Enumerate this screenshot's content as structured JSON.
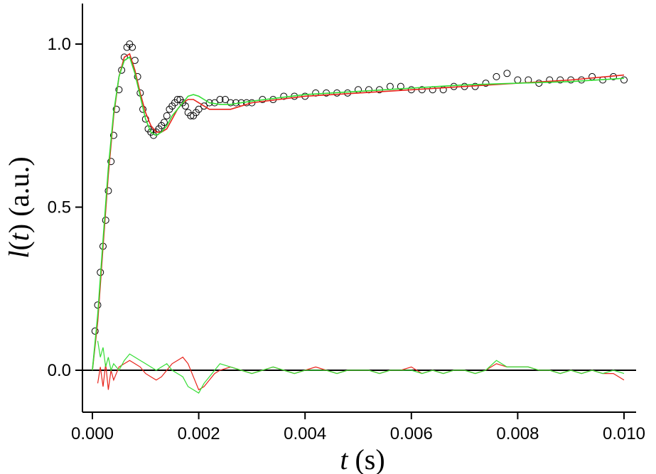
{
  "chart_data": {
    "type": "line",
    "title": "",
    "xlabel_var": "t",
    "xlabel_unit": "(s)",
    "ylabel_var": "l",
    "ylabel_arg": "t",
    "ylabel_unit": "(a.u.)",
    "xlim": [
      0.0,
      0.01
    ],
    "ylim": [
      -0.1,
      1.12
    ],
    "x_ticks": [
      0.0,
      0.002,
      0.004,
      0.006,
      0.008,
      0.01
    ],
    "x_tick_labels": [
      "0.000",
      "0.002",
      "0.004",
      "0.006",
      "0.008",
      "0.010"
    ],
    "y_ticks": [
      0.0,
      0.5,
      1.0
    ],
    "y_tick_labels": [
      "0.0",
      "0.5",
      "1.0"
    ],
    "grid": false,
    "legend": "none",
    "colors": {
      "data": "#000000",
      "fit_red": "#e8231a",
      "fit_green": "#33dd33",
      "zero_line": "#000000"
    },
    "series": [
      {
        "style": "circles",
        "color": "#000000",
        "x": [
          5e-05,
          0.0001,
          0.00015,
          0.0002,
          0.00025,
          0.0003,
          0.00035,
          0.0004,
          0.00045,
          0.0005,
          0.00055,
          0.0006,
          0.00065,
          0.0007,
          0.00075,
          0.0008,
          0.00085,
          0.0009,
          0.00095,
          0.001,
          0.00105,
          0.0011,
          0.00115,
          0.0012,
          0.00125,
          0.0013,
          0.00135,
          0.0014,
          0.00145,
          0.0015,
          0.00155,
          0.0016,
          0.00165,
          0.0017,
          0.00175,
          0.0018,
          0.00185,
          0.0019,
          0.00195,
          0.002,
          0.0021,
          0.0022,
          0.0023,
          0.0024,
          0.0025,
          0.0026,
          0.0027,
          0.0028,
          0.0029,
          0.003,
          0.0032,
          0.0034,
          0.0036,
          0.0038,
          0.004,
          0.0042,
          0.0044,
          0.0046,
          0.0048,
          0.005,
          0.0052,
          0.0054,
          0.0056,
          0.0058,
          0.006,
          0.0062,
          0.0064,
          0.0066,
          0.0068,
          0.007,
          0.0072,
          0.0074,
          0.0076,
          0.0078,
          0.008,
          0.0082,
          0.0084,
          0.0086,
          0.0088,
          0.009,
          0.0092,
          0.0094,
          0.0096,
          0.0098,
          0.01
        ],
        "y": [
          0.12,
          0.2,
          0.3,
          0.38,
          0.46,
          0.55,
          0.64,
          0.72,
          0.8,
          0.86,
          0.92,
          0.96,
          0.99,
          1.0,
          0.99,
          0.95,
          0.9,
          0.85,
          0.8,
          0.77,
          0.74,
          0.73,
          0.72,
          0.73,
          0.74,
          0.75,
          0.76,
          0.78,
          0.8,
          0.81,
          0.82,
          0.83,
          0.83,
          0.82,
          0.81,
          0.79,
          0.78,
          0.78,
          0.79,
          0.8,
          0.81,
          0.82,
          0.82,
          0.83,
          0.83,
          0.82,
          0.82,
          0.82,
          0.82,
          0.82,
          0.83,
          0.83,
          0.84,
          0.84,
          0.84,
          0.85,
          0.85,
          0.85,
          0.85,
          0.86,
          0.86,
          0.86,
          0.87,
          0.87,
          0.86,
          0.86,
          0.86,
          0.86,
          0.87,
          0.87,
          0.87,
          0.88,
          0.9,
          0.91,
          0.89,
          0.89,
          0.88,
          0.89,
          0.89,
          0.89,
          0.89,
          0.9,
          0.89,
          0.9,
          0.89
        ]
      },
      {
        "style": "line",
        "color": "#e8231a",
        "x": [
          0.0,
          0.0001,
          0.0002,
          0.0003,
          0.0004,
          0.0005,
          0.0006,
          0.0007,
          0.0008,
          0.0009,
          0.001,
          0.0011,
          0.0012,
          0.0013,
          0.0014,
          0.0015,
          0.0016,
          0.0017,
          0.0018,
          0.0019,
          0.002,
          0.0022,
          0.0024,
          0.0026,
          0.0028,
          0.003,
          0.0035,
          0.004,
          0.005,
          0.006,
          0.007,
          0.008,
          0.009,
          0.01
        ],
        "y": [
          0.0,
          0.15,
          0.38,
          0.6,
          0.78,
          0.9,
          0.96,
          0.97,
          0.92,
          0.85,
          0.79,
          0.75,
          0.73,
          0.73,
          0.74,
          0.77,
          0.8,
          0.82,
          0.83,
          0.83,
          0.82,
          0.8,
          0.8,
          0.8,
          0.81,
          0.82,
          0.83,
          0.84,
          0.85,
          0.86,
          0.87,
          0.88,
          0.89,
          0.905
        ]
      },
      {
        "style": "line",
        "color": "#33dd33",
        "x": [
          0.0,
          0.0001,
          0.0002,
          0.0003,
          0.0004,
          0.0005,
          0.0006,
          0.0007,
          0.0008,
          0.0009,
          0.001,
          0.0011,
          0.0012,
          0.0013,
          0.0014,
          0.0015,
          0.0016,
          0.0017,
          0.0018,
          0.0019,
          0.002,
          0.0021,
          0.0022,
          0.0024,
          0.0026,
          0.0028,
          0.003,
          0.0035,
          0.004,
          0.005,
          0.006,
          0.007,
          0.008,
          0.009,
          0.01
        ],
        "y": [
          0.0,
          0.17,
          0.4,
          0.62,
          0.79,
          0.9,
          0.95,
          0.96,
          0.91,
          0.84,
          0.77,
          0.73,
          0.72,
          0.73,
          0.75,
          0.78,
          0.8,
          0.82,
          0.84,
          0.845,
          0.84,
          0.83,
          0.82,
          0.815,
          0.815,
          0.82,
          0.825,
          0.835,
          0.845,
          0.855,
          0.865,
          0.875,
          0.88,
          0.885,
          0.895
        ]
      },
      {
        "style": "line",
        "color": "#e8231a",
        "x": [
          0.0001,
          0.00015,
          0.0002,
          0.00025,
          0.0003,
          0.00035,
          0.0004,
          0.0005,
          0.0006,
          0.0007,
          0.0008,
          0.0009,
          0.001,
          0.0011,
          0.0012,
          0.0013,
          0.0014,
          0.0015,
          0.0016,
          0.0017,
          0.0018,
          0.0019,
          0.002,
          0.0021,
          0.0022,
          0.0023,
          0.0024,
          0.0026,
          0.0028,
          0.003,
          0.0032,
          0.0034,
          0.0036,
          0.0038,
          0.004,
          0.0042,
          0.0044,
          0.0046,
          0.0048,
          0.005,
          0.0052,
          0.0054,
          0.0056,
          0.0058,
          0.006,
          0.0062,
          0.0064,
          0.0066,
          0.0068,
          0.007,
          0.0072,
          0.0074,
          0.0076,
          0.0078,
          0.008,
          0.0082,
          0.0084,
          0.0086,
          0.0088,
          0.009,
          0.0092,
          0.0094,
          0.0096,
          0.0098,
          0.01
        ],
        "y": [
          -0.04,
          0.01,
          -0.05,
          0.02,
          -0.06,
          0.0,
          -0.03,
          0.01,
          0.02,
          0.03,
          0.02,
          0.01,
          -0.01,
          -0.02,
          -0.03,
          -0.02,
          0.0,
          0.02,
          0.03,
          0.04,
          0.02,
          -0.02,
          -0.06,
          -0.05,
          -0.03,
          -0.01,
          0.0,
          0.01,
          0.0,
          -0.01,
          0.0,
          0.01,
          0.0,
          -0.01,
          0.0,
          0.01,
          0.0,
          -0.01,
          0.0,
          0.0,
          0.0,
          -0.01,
          0.0,
          0.0,
          0.01,
          -0.01,
          0.0,
          -0.01,
          0.0,
          0.0,
          -0.01,
          0.0,
          0.02,
          0.01,
          0.01,
          0.01,
          0.0,
          0.0,
          -0.01,
          0.0,
          -0.01,
          0.0,
          -0.01,
          -0.01,
          -0.03
        ]
      },
      {
        "style": "line",
        "color": "#33dd33",
        "x": [
          0.0001,
          0.00015,
          0.0002,
          0.00025,
          0.0003,
          0.00035,
          0.0004,
          0.0005,
          0.0006,
          0.0007,
          0.0008,
          0.0009,
          0.001,
          0.0011,
          0.0012,
          0.0013,
          0.0014,
          0.0015,
          0.0016,
          0.0017,
          0.0018,
          0.0019,
          0.002,
          0.0021,
          0.0022,
          0.0023,
          0.0024,
          0.0026,
          0.0028,
          0.003,
          0.0032,
          0.0034,
          0.0036,
          0.0038,
          0.004,
          0.0042,
          0.0044,
          0.0046,
          0.0048,
          0.005,
          0.0052,
          0.0054,
          0.0056,
          0.0058,
          0.006,
          0.0062,
          0.0064,
          0.0066,
          0.0068,
          0.007,
          0.0072,
          0.0074,
          0.0076,
          0.0078,
          0.008,
          0.0082,
          0.0084,
          0.0086,
          0.0088,
          0.009,
          0.0092,
          0.0094,
          0.0096,
          0.0098,
          0.01
        ],
        "y": [
          0.09,
          0.04,
          0.07,
          0.01,
          0.04,
          0.0,
          0.02,
          0.0,
          0.03,
          0.05,
          0.04,
          0.03,
          0.02,
          0.01,
          0.0,
          0.01,
          0.02,
          0.0,
          -0.01,
          -0.02,
          -0.05,
          -0.06,
          -0.07,
          -0.04,
          -0.02,
          0.0,
          0.02,
          0.01,
          0.0,
          -0.01,
          0.0,
          0.01,
          0.0,
          -0.01,
          0.0,
          0.0,
          0.0,
          -0.01,
          0.0,
          0.0,
          0.0,
          -0.01,
          0.0,
          0.0,
          0.0,
          -0.01,
          0.0,
          -0.01,
          0.0,
          0.0,
          -0.01,
          0.0,
          0.03,
          0.01,
          0.01,
          0.01,
          0.0,
          0.0,
          -0.01,
          0.0,
          -0.01,
          0.0,
          -0.01,
          0.0,
          -0.01
        ]
      }
    ]
  }
}
